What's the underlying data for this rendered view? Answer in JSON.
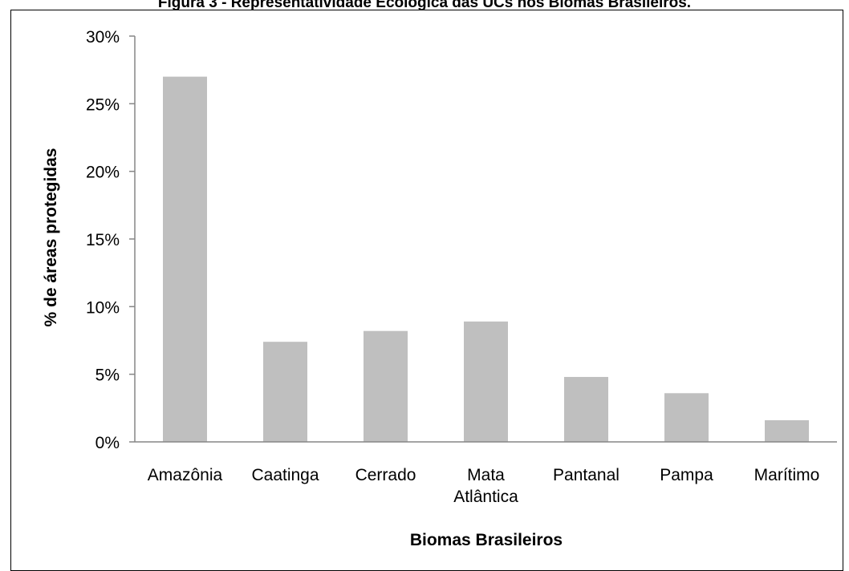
{
  "figure": {
    "title": "Figura 3 - Representatividade Ecológica das UCs nos Biomas Brasileiros."
  },
  "chart_data": {
    "type": "bar",
    "title": "",
    "xlabel": "Biomas Brasileiros",
    "ylabel": "% de áreas protegidas",
    "categories": [
      [
        "Amazônia"
      ],
      [
        "Caatinga"
      ],
      [
        "Cerrado"
      ],
      [
        "Mata",
        "Atlântica"
      ],
      [
        "Pantanal"
      ],
      [
        "Pampa"
      ],
      [
        "Marítimo"
      ]
    ],
    "values": [
      0.27,
      0.074,
      0.082,
      0.089,
      0.048,
      0.036,
      0.016
    ],
    "yticks": [
      "0%",
      "5%",
      "10%",
      "15%",
      "20%",
      "25%",
      "30%"
    ],
    "ylim": [
      0,
      0.3
    ],
    "bar_color": "#bfbfbf",
    "grid": false,
    "legend": "none"
  }
}
